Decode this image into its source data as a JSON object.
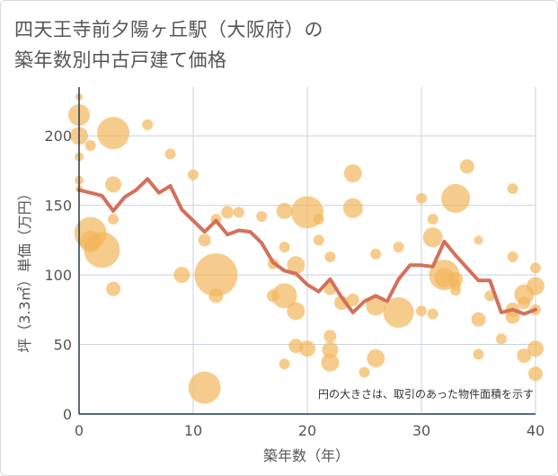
{
  "title": {
    "line1": "四天王寺前夕陽ヶ丘駅（大阪府）の",
    "line2": "築年数別中古戸建て価格"
  },
  "chart_data": {
    "type": "scatter",
    "xlabel": "築年数（年）",
    "ylabel": "坪（3.3㎡）単価（万円）",
    "xlim": [
      0,
      40
    ],
    "ylim": [
      0,
      235
    ],
    "x_ticks": [
      0,
      10,
      20,
      30,
      40
    ],
    "y_ticks": [
      0,
      50,
      100,
      150,
      200
    ],
    "grid": true,
    "annotation": "円の大きさは、取引のあった物件面積を示す",
    "colors": {
      "bubble": "#F2B75B",
      "line": "#D4705A",
      "grid": "#c8d2dc",
      "axis": "#1f3a55"
    },
    "points": [
      {
        "x": 0,
        "y": 228,
        "s": 4
      },
      {
        "x": 0,
        "y": 215,
        "s": 12
      },
      {
        "x": 0,
        "y": 200,
        "s": 10
      },
      {
        "x": 0,
        "y": 185,
        "s": 5
      },
      {
        "x": 0,
        "y": 168,
        "s": 5
      },
      {
        "x": 0,
        "y": 162,
        "s": 4
      },
      {
        "x": 1,
        "y": 193,
        "s": 6
      },
      {
        "x": 3,
        "y": 202,
        "s": 18
      },
      {
        "x": 3,
        "y": 165,
        "s": 9
      },
      {
        "x": 3,
        "y": 140,
        "s": 6
      },
      {
        "x": 6,
        "y": 208,
        "s": 6
      },
      {
        "x": 8,
        "y": 187,
        "s": 6
      },
      {
        "x": 10,
        "y": 172,
        "s": 6
      },
      {
        "x": 1,
        "y": 130,
        "s": 18
      },
      {
        "x": 1,
        "y": 124,
        "s": 12
      },
      {
        "x": 2,
        "y": 118,
        "s": 20
      },
      {
        "x": 3,
        "y": 90,
        "s": 8
      },
      {
        "x": 9,
        "y": 100,
        "s": 9
      },
      {
        "x": 11,
        "y": 125,
        "s": 7
      },
      {
        "x": 12,
        "y": 140,
        "s": 6
      },
      {
        "x": 13,
        "y": 145,
        "s": 7
      },
      {
        "x": 14,
        "y": 145,
        "s": 6
      },
      {
        "x": 12,
        "y": 100,
        "s": 24
      },
      {
        "x": 12,
        "y": 85,
        "s": 8
      },
      {
        "x": 11,
        "y": 19,
        "s": 18
      },
      {
        "x": 16,
        "y": 142,
        "s": 6
      },
      {
        "x": 17,
        "y": 108,
        "s": 6
      },
      {
        "x": 18,
        "y": 146,
        "s": 9
      },
      {
        "x": 18,
        "y": 120,
        "s": 6
      },
      {
        "x": 17,
        "y": 85,
        "s": 7
      },
      {
        "x": 18,
        "y": 85,
        "s": 14
      },
      {
        "x": 19,
        "y": 107,
        "s": 10
      },
      {
        "x": 19,
        "y": 74,
        "s": 10
      },
      {
        "x": 19,
        "y": 49,
        "s": 8
      },
      {
        "x": 18,
        "y": 36,
        "s": 6
      },
      {
        "x": 20,
        "y": 145,
        "s": 18
      },
      {
        "x": 21,
        "y": 140,
        "s": 6
      },
      {
        "x": 21,
        "y": 125,
        "s": 6
      },
      {
        "x": 22,
        "y": 113,
        "s": 6
      },
      {
        "x": 22,
        "y": 90,
        "s": 7
      },
      {
        "x": 20,
        "y": 47,
        "s": 9
      },
      {
        "x": 22,
        "y": 56,
        "s": 7
      },
      {
        "x": 22,
        "y": 46,
        "s": 9
      },
      {
        "x": 22,
        "y": 37,
        "s": 10
      },
      {
        "x": 23,
        "y": 80,
        "s": 8
      },
      {
        "x": 24,
        "y": 173,
        "s": 10
      },
      {
        "x": 24,
        "y": 148,
        "s": 11
      },
      {
        "x": 24,
        "y": 82,
        "s": 7
      },
      {
        "x": 25,
        "y": 30,
        "s": 6
      },
      {
        "x": 26,
        "y": 115,
        "s": 6
      },
      {
        "x": 26,
        "y": 78,
        "s": 11
      },
      {
        "x": 26,
        "y": 40,
        "s": 10
      },
      {
        "x": 28,
        "y": 73,
        "s": 17
      },
      {
        "x": 28,
        "y": 120,
        "s": 6
      },
      {
        "x": 30,
        "y": 155,
        "s": 6
      },
      {
        "x": 30,
        "y": 74,
        "s": 6
      },
      {
        "x": 31,
        "y": 72,
        "s": 6
      },
      {
        "x": 31,
        "y": 140,
        "s": 6
      },
      {
        "x": 31,
        "y": 127,
        "s": 11
      },
      {
        "x": 32,
        "y": 100,
        "s": 17
      },
      {
        "x": 32,
        "y": 98,
        "s": 11
      },
      {
        "x": 33,
        "y": 155,
        "s": 16
      },
      {
        "x": 33,
        "y": 97,
        "s": 8
      },
      {
        "x": 33,
        "y": 93,
        "s": 6
      },
      {
        "x": 33,
        "y": 89,
        "s": 6
      },
      {
        "x": 34,
        "y": 178,
        "s": 8
      },
      {
        "x": 35,
        "y": 125,
        "s": 5
      },
      {
        "x": 35,
        "y": 68,
        "s": 8
      },
      {
        "x": 35,
        "y": 43,
        "s": 6
      },
      {
        "x": 36,
        "y": 85,
        "s": 6
      },
      {
        "x": 37,
        "y": 54,
        "s": 6
      },
      {
        "x": 38,
        "y": 162,
        "s": 6
      },
      {
        "x": 38,
        "y": 113,
        "s": 6
      },
      {
        "x": 38,
        "y": 75,
        "s": 8
      },
      {
        "x": 38,
        "y": 70,
        "s": 8
      },
      {
        "x": 39,
        "y": 86,
        "s": 11
      },
      {
        "x": 39,
        "y": 80,
        "s": 7
      },
      {
        "x": 39,
        "y": 42,
        "s": 8
      },
      {
        "x": 40,
        "y": 105,
        "s": 6
      },
      {
        "x": 40,
        "y": 92,
        "s": 10
      },
      {
        "x": 40,
        "y": 75,
        "s": 6
      },
      {
        "x": 40,
        "y": 47,
        "s": 9
      },
      {
        "x": 40,
        "y": 29,
        "s": 8
      }
    ],
    "series": [
      {
        "x": [
          0,
          1,
          2,
          3,
          4,
          5,
          6,
          7,
          8,
          9,
          10,
          11,
          12,
          13,
          14,
          15,
          16,
          17,
          18,
          19,
          20,
          21,
          22,
          23,
          24,
          25,
          26,
          27,
          28,
          29,
          30,
          31,
          32,
          33,
          34,
          35,
          36,
          37,
          38,
          39,
          40
        ],
        "values": [
          161,
          159,
          157,
          146,
          156,
          161,
          169,
          159,
          164,
          147,
          139,
          131,
          139,
          129,
          132,
          131,
          123,
          109,
          103,
          101,
          93,
          88,
          97,
          84,
          73,
          81,
          85,
          81,
          97,
          107,
          107,
          106,
          124,
          114,
          105,
          96,
          96,
          73,
          75,
          72,
          75
        ]
      }
    ]
  }
}
